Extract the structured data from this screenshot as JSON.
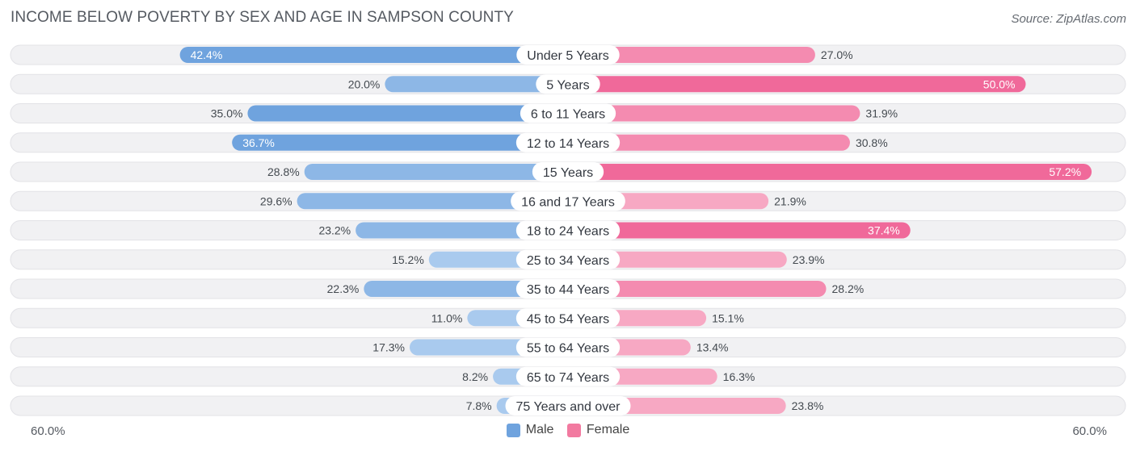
{
  "title": "INCOME BELOW POVERTY BY SEX AND AGE IN SAMPSON COUNTY",
  "source": "Source: ZipAtlas.com",
  "colors": {
    "male_strong": "#6fa3de",
    "male_light": "#a9caee",
    "female_strong": "#f0699a",
    "female_light": "#f7a8c3",
    "row_bg": "#f1f1f3"
  },
  "legend": {
    "male": "Male",
    "female": "Female"
  },
  "axis": {
    "left_label": "60.0%",
    "right_label": "60.0%"
  },
  "chart_data": {
    "type": "bar",
    "orientation": "horizontal-diverging",
    "title": "INCOME BELOW POVERTY BY SEX AND AGE IN SAMPSON COUNTY",
    "categories": [
      "Under 5 Years",
      "5 Years",
      "6 to 11 Years",
      "12 to 14 Years",
      "15 Years",
      "16 and 17 Years",
      "18 to 24 Years",
      "25 to 34 Years",
      "35 to 44 Years",
      "45 to 54 Years",
      "55 to 64 Years",
      "65 to 74 Years",
      "75 Years and over"
    ],
    "series": [
      {
        "name": "Male",
        "values": [
          42.4,
          20.0,
          35.0,
          36.7,
          28.8,
          29.6,
          23.2,
          15.2,
          22.3,
          11.0,
          17.3,
          8.2,
          7.8
        ]
      },
      {
        "name": "Female",
        "values": [
          27.0,
          50.0,
          31.9,
          30.8,
          57.2,
          21.9,
          37.4,
          23.9,
          28.2,
          15.1,
          13.4,
          16.3,
          23.8
        ]
      }
    ],
    "value_labels": {
      "male": [
        "42.4%",
        "20.0%",
        "35.0%",
        "36.7%",
        "28.8%",
        "29.6%",
        "23.2%",
        "15.2%",
        "22.3%",
        "11.0%",
        "17.3%",
        "8.2%",
        "7.8%"
      ],
      "female": [
        "27.0%",
        "50.0%",
        "31.9%",
        "30.8%",
        "57.2%",
        "21.9%",
        "37.4%",
        "23.9%",
        "28.2%",
        "15.1%",
        "13.4%",
        "16.3%",
        "23.8%"
      ]
    },
    "xlim": [
      -60,
      60
    ],
    "unit": "%",
    "legend_position": "bottom-center"
  }
}
